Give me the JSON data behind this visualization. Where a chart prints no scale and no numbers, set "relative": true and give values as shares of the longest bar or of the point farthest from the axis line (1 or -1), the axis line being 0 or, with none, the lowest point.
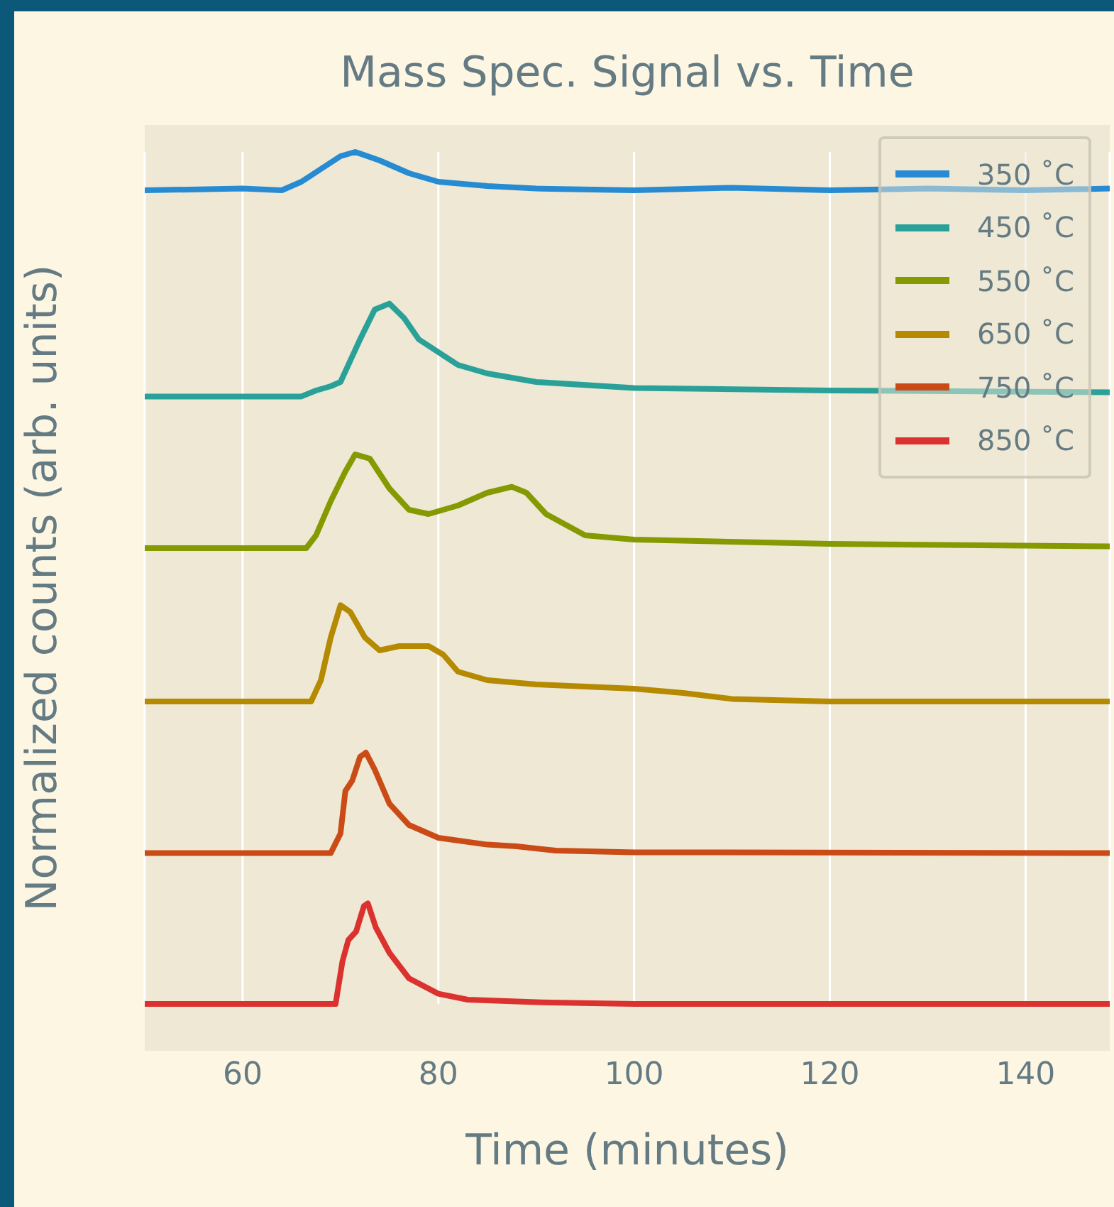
{
  "chart_data": {
    "type": "line",
    "title": "Mass Spec. Signal vs. Time",
    "xlabel": "Time (minutes)",
    "ylabel": "Normalized counts (arb. units)",
    "relative": true,
    "xlim": [
      50,
      148.6
    ],
    "xticks": [
      60,
      80,
      100,
      120,
      140
    ],
    "grid": "x",
    "legend": "top right",
    "tick_labels": "x",
    "series": [
      {
        "name": "350 ˚C",
        "color": "#268bd2",
        "x": [
          50,
          60,
          64,
          66,
          68,
          70,
          71.5,
          74,
          77,
          80,
          85,
          90,
          100,
          110,
          120,
          130,
          140,
          148.6
        ],
        "values": [
          0.955,
          0.957,
          0.955,
          0.965,
          0.98,
          0.995,
          1.0,
          0.99,
          0.975,
          0.965,
          0.96,
          0.957,
          0.955,
          0.958,
          0.955,
          0.957,
          0.955,
          0.957
        ]
      },
      {
        "name": "450 ˚C",
        "color": "#2aa198",
        "x": [
          50,
          66,
          67.5,
          69,
          70,
          72,
          73.5,
          75,
          76.5,
          78,
          80,
          82,
          85,
          90,
          100,
          120,
          148.6
        ],
        "values": [
          0.713,
          0.713,
          0.72,
          0.725,
          0.73,
          0.78,
          0.815,
          0.822,
          0.805,
          0.78,
          0.765,
          0.75,
          0.74,
          0.73,
          0.723,
          0.72,
          0.718
        ]
      },
      {
        "name": "550 ˚C",
        "color": "#859900",
        "x": [
          50,
          66.5,
          67.5,
          69,
          70.5,
          71.5,
          73,
          75,
          77,
          79,
          82,
          85,
          87.5,
          89,
          91,
          95,
          100,
          120,
          148.6
        ],
        "values": [
          0.535,
          0.535,
          0.55,
          0.59,
          0.625,
          0.645,
          0.64,
          0.605,
          0.58,
          0.575,
          0.585,
          0.6,
          0.607,
          0.6,
          0.575,
          0.55,
          0.545,
          0.54,
          0.537
        ]
      },
      {
        "name": "650 ˚C",
        "color": "#b58900",
        "x": [
          50,
          67,
          68,
          69,
          70,
          71,
          72.5,
          74,
          76,
          79,
          80.5,
          82,
          85,
          90,
          100,
          105,
          110,
          120,
          148.6
        ],
        "values": [
          0.355,
          0.355,
          0.38,
          0.43,
          0.468,
          0.46,
          0.43,
          0.415,
          0.42,
          0.42,
          0.41,
          0.39,
          0.38,
          0.375,
          0.37,
          0.365,
          0.358,
          0.355,
          0.355
        ]
      },
      {
        "name": "750 ˚C",
        "color": "#cb4b16",
        "x": [
          50,
          69,
          70,
          70.5,
          71.2,
          72,
          72.6,
          73.5,
          75,
          77,
          80,
          85,
          88,
          92,
          100,
          148.6
        ],
        "values": [
          0.177,
          0.177,
          0.2,
          0.25,
          0.262,
          0.29,
          0.295,
          0.275,
          0.235,
          0.21,
          0.195,
          0.187,
          0.185,
          0.18,
          0.178,
          0.177
        ]
      },
      {
        "name": "850 ˚C",
        "color": "#dc322f",
        "x": [
          50,
          69.5,
          70.2,
          70.8,
          71.6,
          72.4,
          72.8,
          73.6,
          75,
          77,
          80,
          83,
          90,
          100,
          148.6
        ],
        "values": [
          0,
          0,
          0.05,
          0.075,
          0.085,
          0.115,
          0.118,
          0.09,
          0.06,
          0.03,
          0.012,
          0.005,
          0.002,
          0,
          0
        ]
      }
    ]
  }
}
